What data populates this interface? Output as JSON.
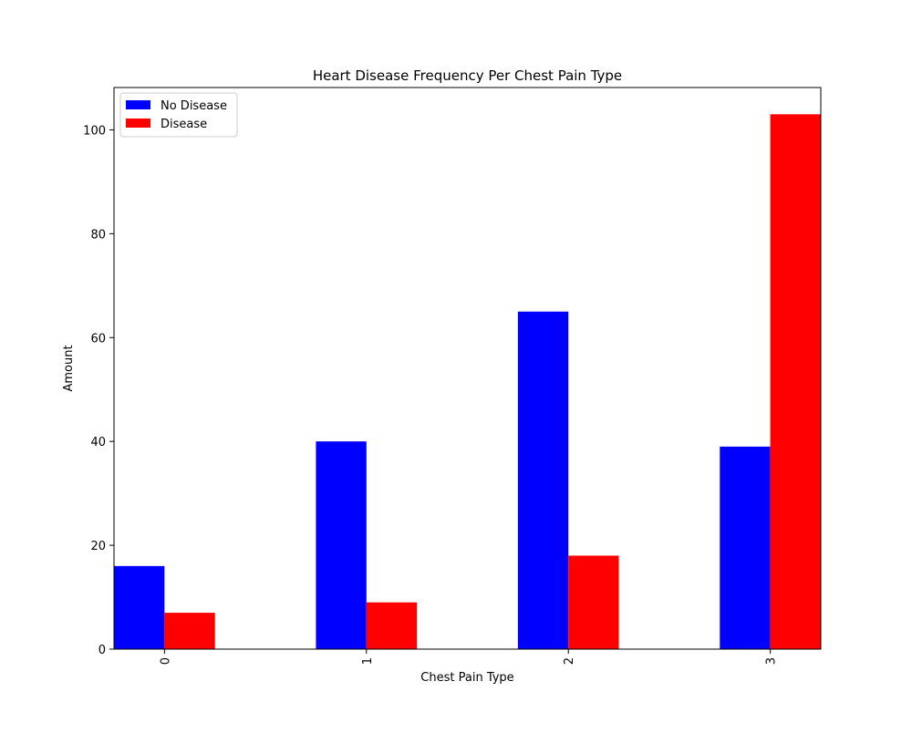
{
  "chart_data": {
    "type": "bar",
    "title": "Heart Disease Frequency Per Chest Pain Type",
    "xlabel": "Chest Pain Type",
    "ylabel": "Amount",
    "categories": [
      "0",
      "1",
      "2",
      "3"
    ],
    "series": [
      {
        "name": "No Disease",
        "color": "#0000ff",
        "values": [
          16,
          40,
          65,
          39
        ]
      },
      {
        "name": "Disease",
        "color": "#ff0000",
        "values": [
          7,
          9,
          18,
          103
        ]
      }
    ],
    "ylim": [
      0,
      108.15
    ],
    "yticks": [
      "0",
      "20",
      "40",
      "60",
      "80",
      "100"
    ],
    "grid": false,
    "legend_position": "top-left",
    "xtick_rotation": "vertical"
  }
}
